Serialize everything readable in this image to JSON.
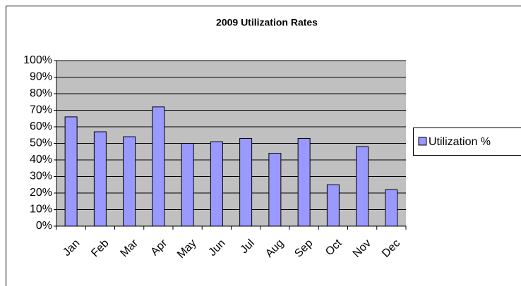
{
  "chart_data": {
    "type": "bar",
    "title": "2009 Utilization Rates",
    "categories": [
      "Jan",
      "Feb",
      "Mar",
      "Apr",
      "May",
      "Jun",
      "Jul",
      "Aug",
      "Sep",
      "Oct",
      "Nov",
      "Dec"
    ],
    "series": [
      {
        "name": "Utilization %",
        "color": "#9999ff",
        "values": [
          66,
          57,
          54,
          72,
          50,
          51,
          53,
          44,
          53,
          25,
          48,
          22
        ]
      }
    ],
    "ylim": [
      0,
      100
    ],
    "yticks": [
      {
        "value": 0,
        "label": "0%"
      },
      {
        "value": 10,
        "label": "10%"
      },
      {
        "value": 20,
        "label": "20%"
      },
      {
        "value": 30,
        "label": "30%"
      },
      {
        "value": 40,
        "label": "40%"
      },
      {
        "value": 50,
        "label": "50%"
      },
      {
        "value": 60,
        "label": "60%"
      },
      {
        "value": 70,
        "label": "70%"
      },
      {
        "value": 80,
        "label": "80%"
      },
      {
        "value": 90,
        "label": "90%"
      },
      {
        "value": 100,
        "label": "100%"
      }
    ],
    "grid": true,
    "legend": "right"
  }
}
